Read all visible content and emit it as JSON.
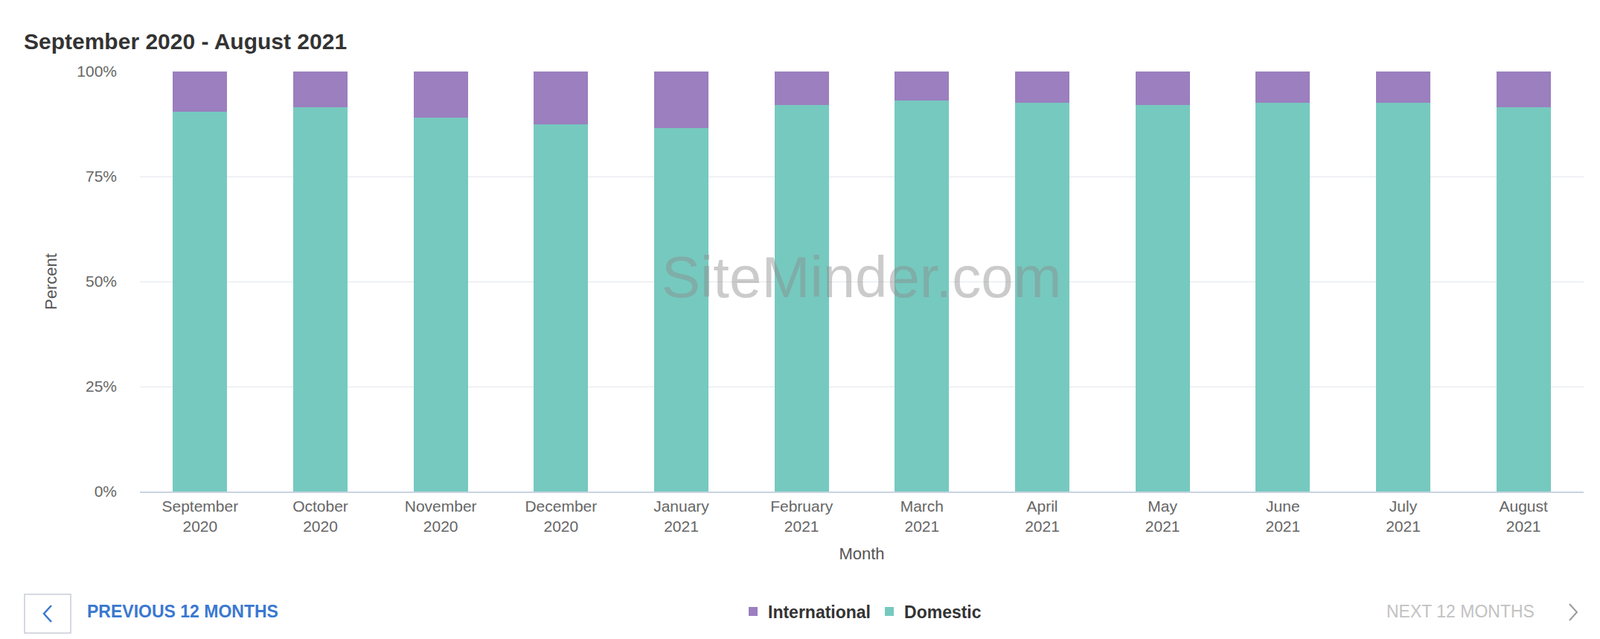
{
  "chart_data": {
    "type": "bar",
    "title": "September 2020 - August 2021",
    "x_label": "Month",
    "y_label": "Percent",
    "categories": [
      "September 2020",
      "October 2020",
      "November 2020",
      "December 2020",
      "January 2021",
      "February 2021",
      "March 2021",
      "April 2021",
      "May 2021",
      "June 2021",
      "July 2021",
      "August 2021"
    ],
    "series": [
      {
        "name": "International",
        "color": "#9b7fbf",
        "values": [
          9.5,
          8.5,
          11,
          12.5,
          13.5,
          8,
          7,
          7.5,
          8,
          7.5,
          7.5,
          8.5
        ]
      },
      {
        "name": "Domestic",
        "color": "#76c9bf",
        "values": [
          90.5,
          91.5,
          89,
          87.5,
          86.5,
          92,
          93,
          92.5,
          92,
          92.5,
          92.5,
          91.5
        ]
      }
    ],
    "stacked": true,
    "ylim": [
      0,
      100
    ],
    "yticks": [
      {
        "value": 0,
        "label": "0%"
      },
      {
        "value": 25,
        "label": "25%"
      },
      {
        "value": 50,
        "label": "50%"
      },
      {
        "value": 75,
        "label": "75%"
      },
      {
        "value": 100,
        "label": "100%"
      }
    ],
    "grid": true,
    "legend": "bottom",
    "annotations": [
      "SiteMinder.com",
      "PREVIOUS 12 MONTHS",
      "NEXT 12 MONTHS"
    ]
  }
}
